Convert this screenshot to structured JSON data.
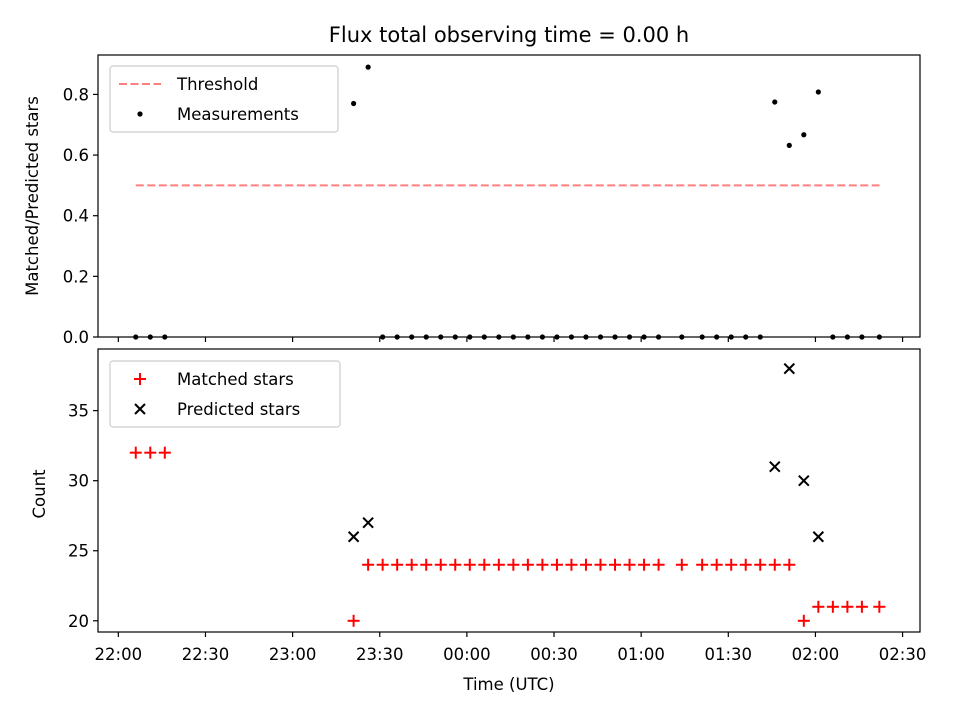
{
  "chart_data": [
    {
      "type": "scatter",
      "title": "Flux total observing time = 0.00 h",
      "xlabel": "",
      "ylabel": "Matched/Predicted stars",
      "xlim": [
        "21:53",
        "02:36"
      ],
      "ylim": [
        0,
        0.93
      ],
      "yticks": [
        "0.0",
        "0.2",
        "0.4",
        "0.6",
        "0.8"
      ],
      "legend_position": "upper left",
      "series": [
        {
          "name": "Threshold",
          "kind": "dashed-line",
          "color": "#ff7f7f",
          "points": [
            [
              "22:06",
              0.5
            ],
            [
              "02:22",
              0.5
            ]
          ]
        },
        {
          "name": "Measurements",
          "kind": "dot",
          "color": "#000000",
          "points": [
            [
              "22:06",
              0.0
            ],
            [
              "22:11",
              0.0
            ],
            [
              "22:16",
              0.0
            ],
            [
              "23:21",
              0.77
            ],
            [
              "23:26",
              0.89
            ],
            [
              "23:31",
              0.0
            ],
            [
              "23:36",
              0.0
            ],
            [
              "23:41",
              0.0
            ],
            [
              "23:46",
              0.0
            ],
            [
              "23:51",
              0.0
            ],
            [
              "23:56",
              0.0
            ],
            [
              "00:01",
              0.0
            ],
            [
              "00:06",
              0.0
            ],
            [
              "00:11",
              0.0
            ],
            [
              "00:16",
              0.0
            ],
            [
              "00:21",
              0.0
            ],
            [
              "00:26",
              0.0
            ],
            [
              "00:31",
              0.0
            ],
            [
              "00:36",
              0.0
            ],
            [
              "00:41",
              0.0
            ],
            [
              "00:46",
              0.0
            ],
            [
              "00:51",
              0.0
            ],
            [
              "00:56",
              0.0
            ],
            [
              "01:01",
              0.0
            ],
            [
              "01:06",
              0.0
            ],
            [
              "01:14",
              0.0
            ],
            [
              "01:21",
              0.0
            ],
            [
              "01:26",
              0.0
            ],
            [
              "01:31",
              0.0
            ],
            [
              "01:36",
              0.0
            ],
            [
              "01:41",
              0.0
            ],
            [
              "01:46",
              0.775
            ],
            [
              "01:51",
              0.632
            ],
            [
              "01:56",
              0.667
            ],
            [
              "02:01",
              0.808
            ],
            [
              "02:06",
              0.0
            ],
            [
              "02:11",
              0.0
            ],
            [
              "02:16",
              0.0
            ],
            [
              "02:22",
              0.0
            ]
          ]
        }
      ]
    },
    {
      "type": "scatter",
      "title": "",
      "xlabel": "Time (UTC)",
      "ylabel": "Count",
      "xlim": [
        "21:53",
        "02:36"
      ],
      "ylim": [
        19.2,
        39.4
      ],
      "xticks": [
        "22:00",
        "22:30",
        "23:00",
        "23:30",
        "00:00",
        "00:30",
        "01:00",
        "01:30",
        "02:00",
        "02:30"
      ],
      "yticks": [
        "20",
        "25",
        "30",
        "35"
      ],
      "legend_position": "upper left",
      "series": [
        {
          "name": "Matched stars",
          "kind": "plus",
          "color": "#ff0000",
          "points": [
            [
              "22:06",
              32
            ],
            [
              "22:11",
              32
            ],
            [
              "22:16",
              32
            ],
            [
              "23:21",
              20
            ],
            [
              "23:26",
              24
            ],
            [
              "23:31",
              24
            ],
            [
              "23:36",
              24
            ],
            [
              "23:41",
              24
            ],
            [
              "23:46",
              24
            ],
            [
              "23:51",
              24
            ],
            [
              "23:56",
              24
            ],
            [
              "00:01",
              24
            ],
            [
              "00:06",
              24
            ],
            [
              "00:11",
              24
            ],
            [
              "00:16",
              24
            ],
            [
              "00:21",
              24
            ],
            [
              "00:26",
              24
            ],
            [
              "00:31",
              24
            ],
            [
              "00:36",
              24
            ],
            [
              "00:41",
              24
            ],
            [
              "00:46",
              24
            ],
            [
              "00:51",
              24
            ],
            [
              "00:56",
              24
            ],
            [
              "01:01",
              24
            ],
            [
              "01:06",
              24
            ],
            [
              "01:14",
              24
            ],
            [
              "01:21",
              24
            ],
            [
              "01:26",
              24
            ],
            [
              "01:31",
              24
            ],
            [
              "01:36",
              24
            ],
            [
              "01:41",
              24
            ],
            [
              "01:46",
              24
            ],
            [
              "01:51",
              24
            ],
            [
              "01:56",
              20
            ],
            [
              "02:01",
              21
            ],
            [
              "02:06",
              21
            ],
            [
              "02:11",
              21
            ],
            [
              "02:16",
              21
            ],
            [
              "02:22",
              21
            ]
          ]
        },
        {
          "name": "Predicted stars",
          "kind": "cross",
          "color": "#000000",
          "points": [
            [
              "23:21",
              26
            ],
            [
              "23:26",
              27
            ],
            [
              "01:46",
              31
            ],
            [
              "01:51",
              38
            ],
            [
              "01:56",
              30
            ],
            [
              "02:01",
              26
            ]
          ]
        }
      ]
    }
  ]
}
